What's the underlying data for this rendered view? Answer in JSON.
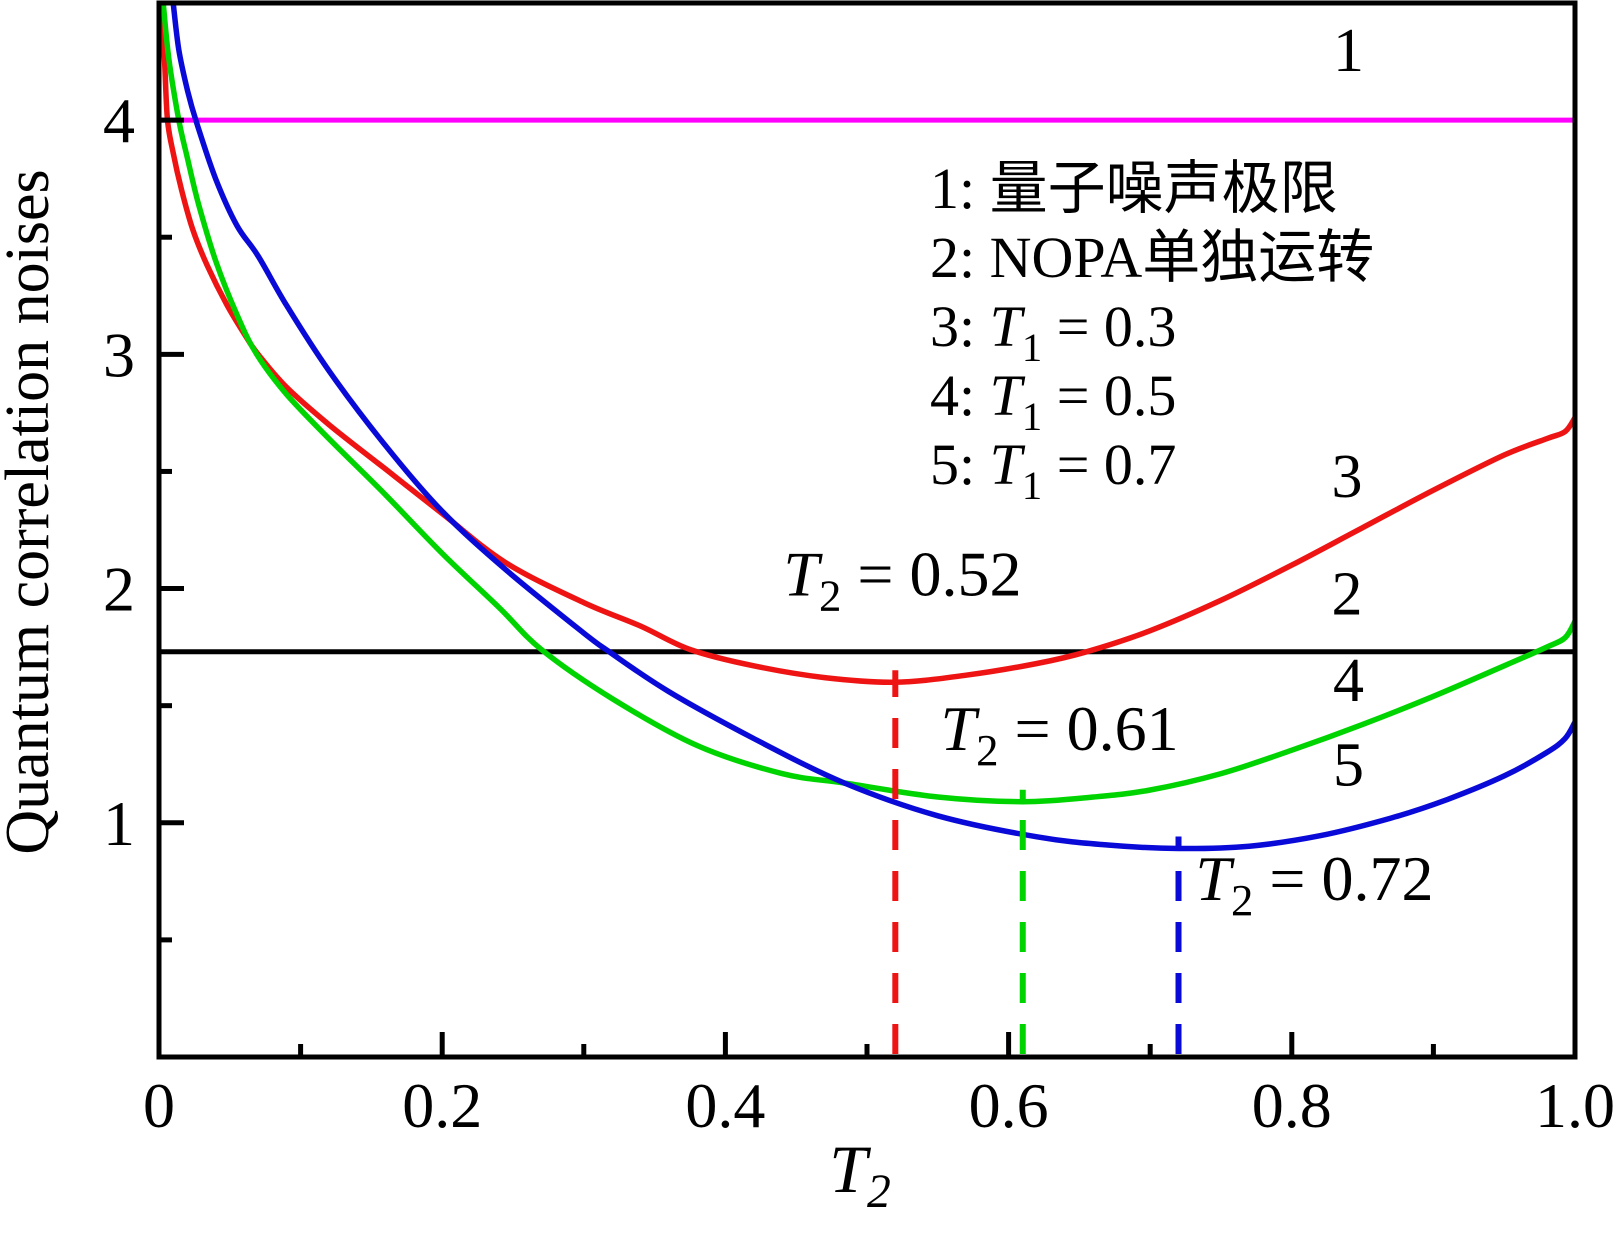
{
  "figure": {
    "ylabel": "Quantum correlation noises",
    "xlabel_parts": [
      {
        "t": "T",
        "i": true
      },
      {
        "t": "2",
        "sub": true
      }
    ]
  },
  "chart_data": {
    "type": "line",
    "xlim": [
      0,
      1.0
    ],
    "ylim": [
      0,
      4.5
    ],
    "grid": false,
    "x_ticks": [
      {
        "v": 0,
        "label": "0"
      },
      {
        "v": 0.2,
        "label": "0.2"
      },
      {
        "v": 0.4,
        "label": "0.4"
      },
      {
        "v": 0.6,
        "label": "0.6"
      },
      {
        "v": 0.8,
        "label": "0.8"
      },
      {
        "v": 1.0,
        "label": "1.0"
      }
    ],
    "x_minor_ticks": [
      0.1,
      0.3,
      0.5,
      0.7,
      0.9
    ],
    "y_ticks": [
      {
        "v": 1,
        "label": "1"
      },
      {
        "v": 2,
        "label": "2"
      },
      {
        "v": 3,
        "label": "3"
      },
      {
        "v": 4,
        "label": "4"
      }
    ],
    "y_minor_ticks": [
      0.5,
      1.5,
      2.5,
      3.5
    ],
    "series": [
      {
        "name": "quantum-noise-limit",
        "curve_no": "1",
        "color": "#ff00ff",
        "kind": "hline",
        "value": 4.0,
        "label_pos": {
          "x": 0.84,
          "y": 4.21
        }
      },
      {
        "name": "nopa-alone",
        "curve_no": "2",
        "color": "#000000",
        "kind": "hline",
        "value": 1.73,
        "label_pos": {
          "x": 0.839,
          "y": 1.89
        }
      },
      {
        "name": "T1-0.3",
        "curve_no": "3",
        "color": "#ee1414",
        "kind": "curve",
        "min_point": {
          "x": 0.52,
          "y": 1.6
        },
        "label_pos": {
          "x": 0.839,
          "y": 2.39
        },
        "points": [
          [
            0.0015,
            4.5
          ],
          [
            0.004,
            4.24
          ],
          [
            0.006,
            4.0
          ],
          [
            0.01,
            3.86
          ],
          [
            0.016,
            3.7
          ],
          [
            0.024,
            3.53
          ],
          [
            0.034,
            3.38
          ],
          [
            0.048,
            3.21
          ],
          [
            0.062,
            3.07
          ],
          [
            0.07,
            3.0
          ],
          [
            0.09,
            2.86
          ],
          [
            0.12,
            2.7
          ],
          [
            0.16,
            2.51
          ],
          [
            0.2,
            2.32
          ],
          [
            0.245,
            2.11
          ],
          [
            0.3,
            1.94
          ],
          [
            0.34,
            1.84
          ],
          [
            0.375,
            1.74
          ],
          [
            0.42,
            1.67
          ],
          [
            0.47,
            1.62
          ],
          [
            0.52,
            1.6
          ],
          [
            0.57,
            1.63
          ],
          [
            0.62,
            1.68
          ],
          [
            0.655,
            1.73
          ],
          [
            0.7,
            1.82
          ],
          [
            0.75,
            1.95
          ],
          [
            0.8,
            2.1
          ],
          [
            0.85,
            2.26
          ],
          [
            0.9,
            2.42
          ],
          [
            0.95,
            2.57
          ],
          [
            0.98,
            2.64
          ],
          [
            0.993,
            2.67
          ],
          [
            1.0,
            2.73
          ]
        ]
      },
      {
        "name": "T1-0.5",
        "curve_no": "4",
        "color": "#00d400",
        "kind": "curve",
        "min_point": {
          "x": 0.61,
          "y": 1.09
        },
        "label_pos": {
          "x": 0.84,
          "y": 1.52
        },
        "points": [
          [
            0.003,
            4.5
          ],
          [
            0.007,
            4.26
          ],
          [
            0.014,
            4.0
          ],
          [
            0.02,
            3.84
          ],
          [
            0.028,
            3.64
          ],
          [
            0.04,
            3.4
          ],
          [
            0.055,
            3.17
          ],
          [
            0.069,
            3.0
          ],
          [
            0.09,
            2.83
          ],
          [
            0.12,
            2.64
          ],
          [
            0.16,
            2.4
          ],
          [
            0.2,
            2.15
          ],
          [
            0.24,
            1.92
          ],
          [
            0.27,
            1.74
          ],
          [
            0.32,
            1.53
          ],
          [
            0.38,
            1.33
          ],
          [
            0.44,
            1.21
          ],
          [
            0.484,
            1.17
          ],
          [
            0.55,
            1.11
          ],
          [
            0.61,
            1.09
          ],
          [
            0.66,
            1.11
          ],
          [
            0.7,
            1.14
          ],
          [
            0.75,
            1.21
          ],
          [
            0.8,
            1.31
          ],
          [
            0.85,
            1.42
          ],
          [
            0.9,
            1.54
          ],
          [
            0.95,
            1.67
          ],
          [
            0.98,
            1.75
          ],
          [
            0.993,
            1.79
          ],
          [
            1.0,
            1.86
          ]
        ]
      },
      {
        "name": "T1-0.7",
        "curve_no": "5",
        "color": "#0a0ad8",
        "kind": "curve",
        "min_point": {
          "x": 0.72,
          "y": 0.89
        },
        "label_pos": {
          "x": 0.84,
          "y": 1.16
        },
        "points": [
          [
            0.01,
            4.5
          ],
          [
            0.014,
            4.3
          ],
          [
            0.02,
            4.13
          ],
          [
            0.026,
            4.0
          ],
          [
            0.04,
            3.75
          ],
          [
            0.055,
            3.55
          ],
          [
            0.07,
            3.42
          ],
          [
            0.09,
            3.21
          ],
          [
            0.12,
            2.93
          ],
          [
            0.16,
            2.61
          ],
          [
            0.2,
            2.33
          ],
          [
            0.245,
            2.08
          ],
          [
            0.3,
            1.81
          ],
          [
            0.318,
            1.73
          ],
          [
            0.36,
            1.56
          ],
          [
            0.42,
            1.36
          ],
          [
            0.484,
            1.17
          ],
          [
            0.55,
            1.03
          ],
          [
            0.62,
            0.94
          ],
          [
            0.67,
            0.905
          ],
          [
            0.72,
            0.89
          ],
          [
            0.77,
            0.9
          ],
          [
            0.82,
            0.945
          ],
          [
            0.87,
            1.02
          ],
          [
            0.91,
            1.1
          ],
          [
            0.95,
            1.2
          ],
          [
            0.98,
            1.3
          ],
          [
            0.993,
            1.36
          ],
          [
            1.0,
            1.43
          ]
        ]
      }
    ],
    "minima_markers": [
      {
        "x": 0.52,
        "y_top": 1.6,
        "color": "#ee1414"
      },
      {
        "x": 0.61,
        "y_top": 1.09,
        "color": "#00d400"
      },
      {
        "x": 0.72,
        "y_top": 0.89,
        "color": "#0a0ad8"
      }
    ],
    "annotations": [
      {
        "x": 0.525,
        "y": 1.97,
        "parts": [
          {
            "t": "T",
            "i": true
          },
          {
            "t": "2",
            "sub": true
          },
          {
            "t": " = 0.52"
          }
        ]
      },
      {
        "x": 0.636,
        "y": 1.31,
        "parts": [
          {
            "t": "T",
            "i": true
          },
          {
            "t": "2",
            "sub": true
          },
          {
            "t": " = 0.61"
          }
        ]
      },
      {
        "x": 0.816,
        "y": 0.67,
        "parts": [
          {
            "t": "T",
            "i": true
          },
          {
            "t": "2",
            "sub": true
          },
          {
            "t": " = 0.72"
          }
        ]
      }
    ],
    "legend": {
      "rows": [
        {
          "parts": [
            {
              "t": "1: "
            },
            {
              "t": "量子噪声极限"
            }
          ]
        },
        {
          "parts": [
            {
              "t": "2: "
            },
            {
              "t": "NOPA"
            },
            {
              "t": "单独运转"
            }
          ]
        },
        {
          "parts": [
            {
              "t": "3: "
            },
            {
              "t": "T",
              "i": true
            },
            {
              "t": "1",
              "sub": true
            },
            {
              "t": " = 0.3"
            }
          ]
        },
        {
          "parts": [
            {
              "t": "4: "
            },
            {
              "t": "T",
              "i": true
            },
            {
              "t": "1",
              "sub": true
            },
            {
              "t": " = 0.5"
            }
          ]
        },
        {
          "parts": [
            {
              "t": "5: "
            },
            {
              "t": "T",
              "i": true
            },
            {
              "t": "1",
              "sub": true
            },
            {
              "t": " = 0.7"
            }
          ]
        }
      ]
    }
  }
}
